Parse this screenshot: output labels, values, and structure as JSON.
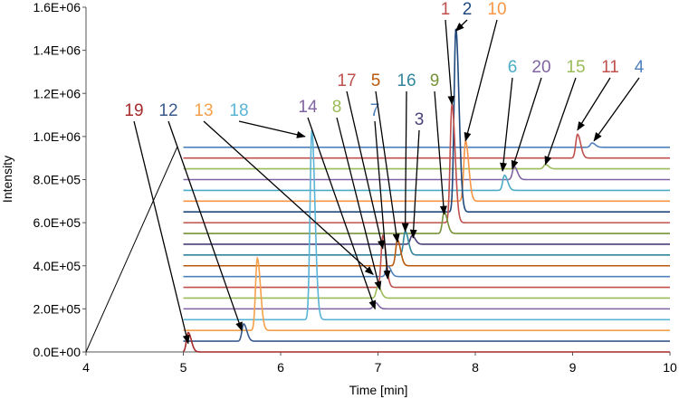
{
  "chart_data": {
    "type": "line",
    "subtype": "stacked-offset chromatograms (waterfall)",
    "xlabel": "Time [min]",
    "ylabel": "Intensity",
    "xlim": [
      4,
      10
    ],
    "ylim": [
      0,
      1600000
    ],
    "x_ticks": [
      "4",
      "5",
      "6",
      "7",
      "8",
      "9",
      "10"
    ],
    "y_ticks": [
      "0.0E+00",
      "2.0E+05",
      "4.0E+05",
      "6.0E+05",
      "8.0E+05",
      "1.0E+06",
      "1.2E+06",
      "1.4E+06",
      "1.6E+06"
    ],
    "grid": false,
    "legend": "none",
    "trace_offset_step": 50000,
    "traces": [
      {
        "name": "19",
        "color": "#a52a2a",
        "offset": 0,
        "start": 5.0,
        "peak_time": 5.05,
        "peak_height": 90000
      },
      {
        "name": "13",
        "color": "#f5a04a",
        "offset": 100000,
        "start": 5.0,
        "peak_time": 5.76,
        "peak_height": 435000
      },
      {
        "name": "18",
        "color": "#5ab4d6",
        "offset": 150000,
        "start": 5.0,
        "peak_time": 6.32,
        "peak_height": 1030000
      },
      {
        "name": "12",
        "color": "#3a5a8c",
        "offset": 50000,
        "start": 5.0,
        "peak_time": 5.62,
        "peak_height": 130000
      },
      {
        "name": "14",
        "color": "#8064a2",
        "offset": 200000,
        "start": 5.0,
        "peak_time": 6.97,
        "peak_height": 230000
      },
      {
        "name": "8",
        "color": "#9bbb59",
        "offset": 250000,
        "start": 5.0,
        "peak_time": 7.0,
        "peak_height": 305000
      },
      {
        "name": "17",
        "color": "#c0504d",
        "offset": 300000,
        "start": 5.0,
        "peak_time": 7.05,
        "peak_height": 540000
      },
      {
        "name": "7",
        "color": "#4f81bd",
        "offset": 350000,
        "start": 5.0,
        "peak_time": 7.1,
        "peak_height": 400000
      },
      {
        "name": "5",
        "color": "#b8590c",
        "offset": 400000,
        "start": 5.0,
        "peak_time": 7.2,
        "peak_height": 520000
      },
      {
        "name": "16",
        "color": "#31859c",
        "offset": 450000,
        "start": 5.0,
        "peak_time": 7.28,
        "peak_height": 560000
      },
      {
        "name": "3",
        "color": "#4b3f7a",
        "offset": 500000,
        "start": 5.0,
        "peak_time": 7.35,
        "peak_height": 540000
      },
      {
        "name": "9",
        "color": "#76923c",
        "offset": 550000,
        "start": 5.0,
        "peak_time": 7.68,
        "peak_height": 650000
      },
      {
        "name": "1",
        "color": "#c0504d",
        "offset": 600000,
        "start": 5.0,
        "peak_time": 7.76,
        "peak_height": 1150000
      },
      {
        "name": "2",
        "color": "#1f497d",
        "offset": 650000,
        "start": 5.0,
        "peak_time": 7.8,
        "peak_height": 1500000
      },
      {
        "name": "10",
        "color": "#f79646",
        "offset": 700000,
        "start": 5.0,
        "peak_time": 7.9,
        "peak_height": 980000
      },
      {
        "name": "6",
        "color": "#4bacc6",
        "offset": 750000,
        "start": 5.0,
        "peak_time": 8.3,
        "peak_height": 820000
      },
      {
        "name": "20",
        "color": "#8064a2",
        "offset": 800000,
        "start": 5.0,
        "peak_time": 8.4,
        "peak_height": 860000
      },
      {
        "name": "15",
        "color": "#9bbb59",
        "offset": 850000,
        "start": 5.0,
        "peak_time": 8.72,
        "peak_height": 870000
      },
      {
        "name": "11",
        "color": "#c0504d",
        "offset": 900000,
        "start": 5.0,
        "peak_time": 9.05,
        "peak_height": 1010000
      },
      {
        "name": "4",
        "color": "#4f81bd",
        "offset": 950000,
        "start": 5.0,
        "peak_time": 9.2,
        "peak_height": 970000
      }
    ],
    "annotations": [
      {
        "text": "19",
        "color": "#a52a2a",
        "points_to": [
          5.05,
          40000
        ]
      },
      {
        "text": "12",
        "color": "#3a5a8c",
        "points_to": [
          5.6,
          100000
        ]
      },
      {
        "text": "13",
        "color": "#f5a04a",
        "points_to": [
          6.95,
          360000
        ]
      },
      {
        "text": "18",
        "color": "#5ab4d6",
        "points_to": [
          6.25,
          1000000
        ]
      },
      {
        "text": "14",
        "color": "#8064a2",
        "points_to": [
          6.97,
          200000
        ]
      },
      {
        "text": "8",
        "color": "#9bbb59",
        "points_to": [
          7.02,
          290000
        ]
      },
      {
        "text": "17",
        "color": "#c0504d",
        "points_to": [
          7.05,
          480000
        ]
      },
      {
        "text": "7",
        "color": "#4f81bd",
        "points_to": [
          7.1,
          340000
        ]
      },
      {
        "text": "5",
        "color": "#b8590c",
        "points_to": [
          7.2,
          510000
        ]
      },
      {
        "text": "16",
        "color": "#31859c",
        "points_to": [
          7.28,
          560000
        ]
      },
      {
        "text": "3",
        "color": "#4b3f7a",
        "points_to": [
          7.36,
          530000
        ]
      },
      {
        "text": "9",
        "color": "#76923c",
        "points_to": [
          7.68,
          640000
        ]
      },
      {
        "text": "1",
        "color": "#c0504d",
        "points_to": [
          7.76,
          1150000
        ]
      },
      {
        "text": "2",
        "color": "#1f497d",
        "points_to": [
          7.8,
          1490000
        ]
      },
      {
        "text": "10",
        "color": "#f79646",
        "points_to": [
          7.9,
          980000
        ]
      },
      {
        "text": "6",
        "color": "#4bacc6",
        "points_to": [
          8.28,
          840000
        ]
      },
      {
        "text": "20",
        "color": "#8064a2",
        "points_to": [
          8.38,
          850000
        ]
      },
      {
        "text": "15",
        "color": "#9bbb59",
        "points_to": [
          8.72,
          870000
        ]
      },
      {
        "text": "11",
        "color": "#c0504d",
        "points_to": [
          9.05,
          1030000
        ]
      },
      {
        "text": "4",
        "color": "#4f81bd",
        "points_to": [
          9.22,
          980000
        ]
      }
    ]
  }
}
